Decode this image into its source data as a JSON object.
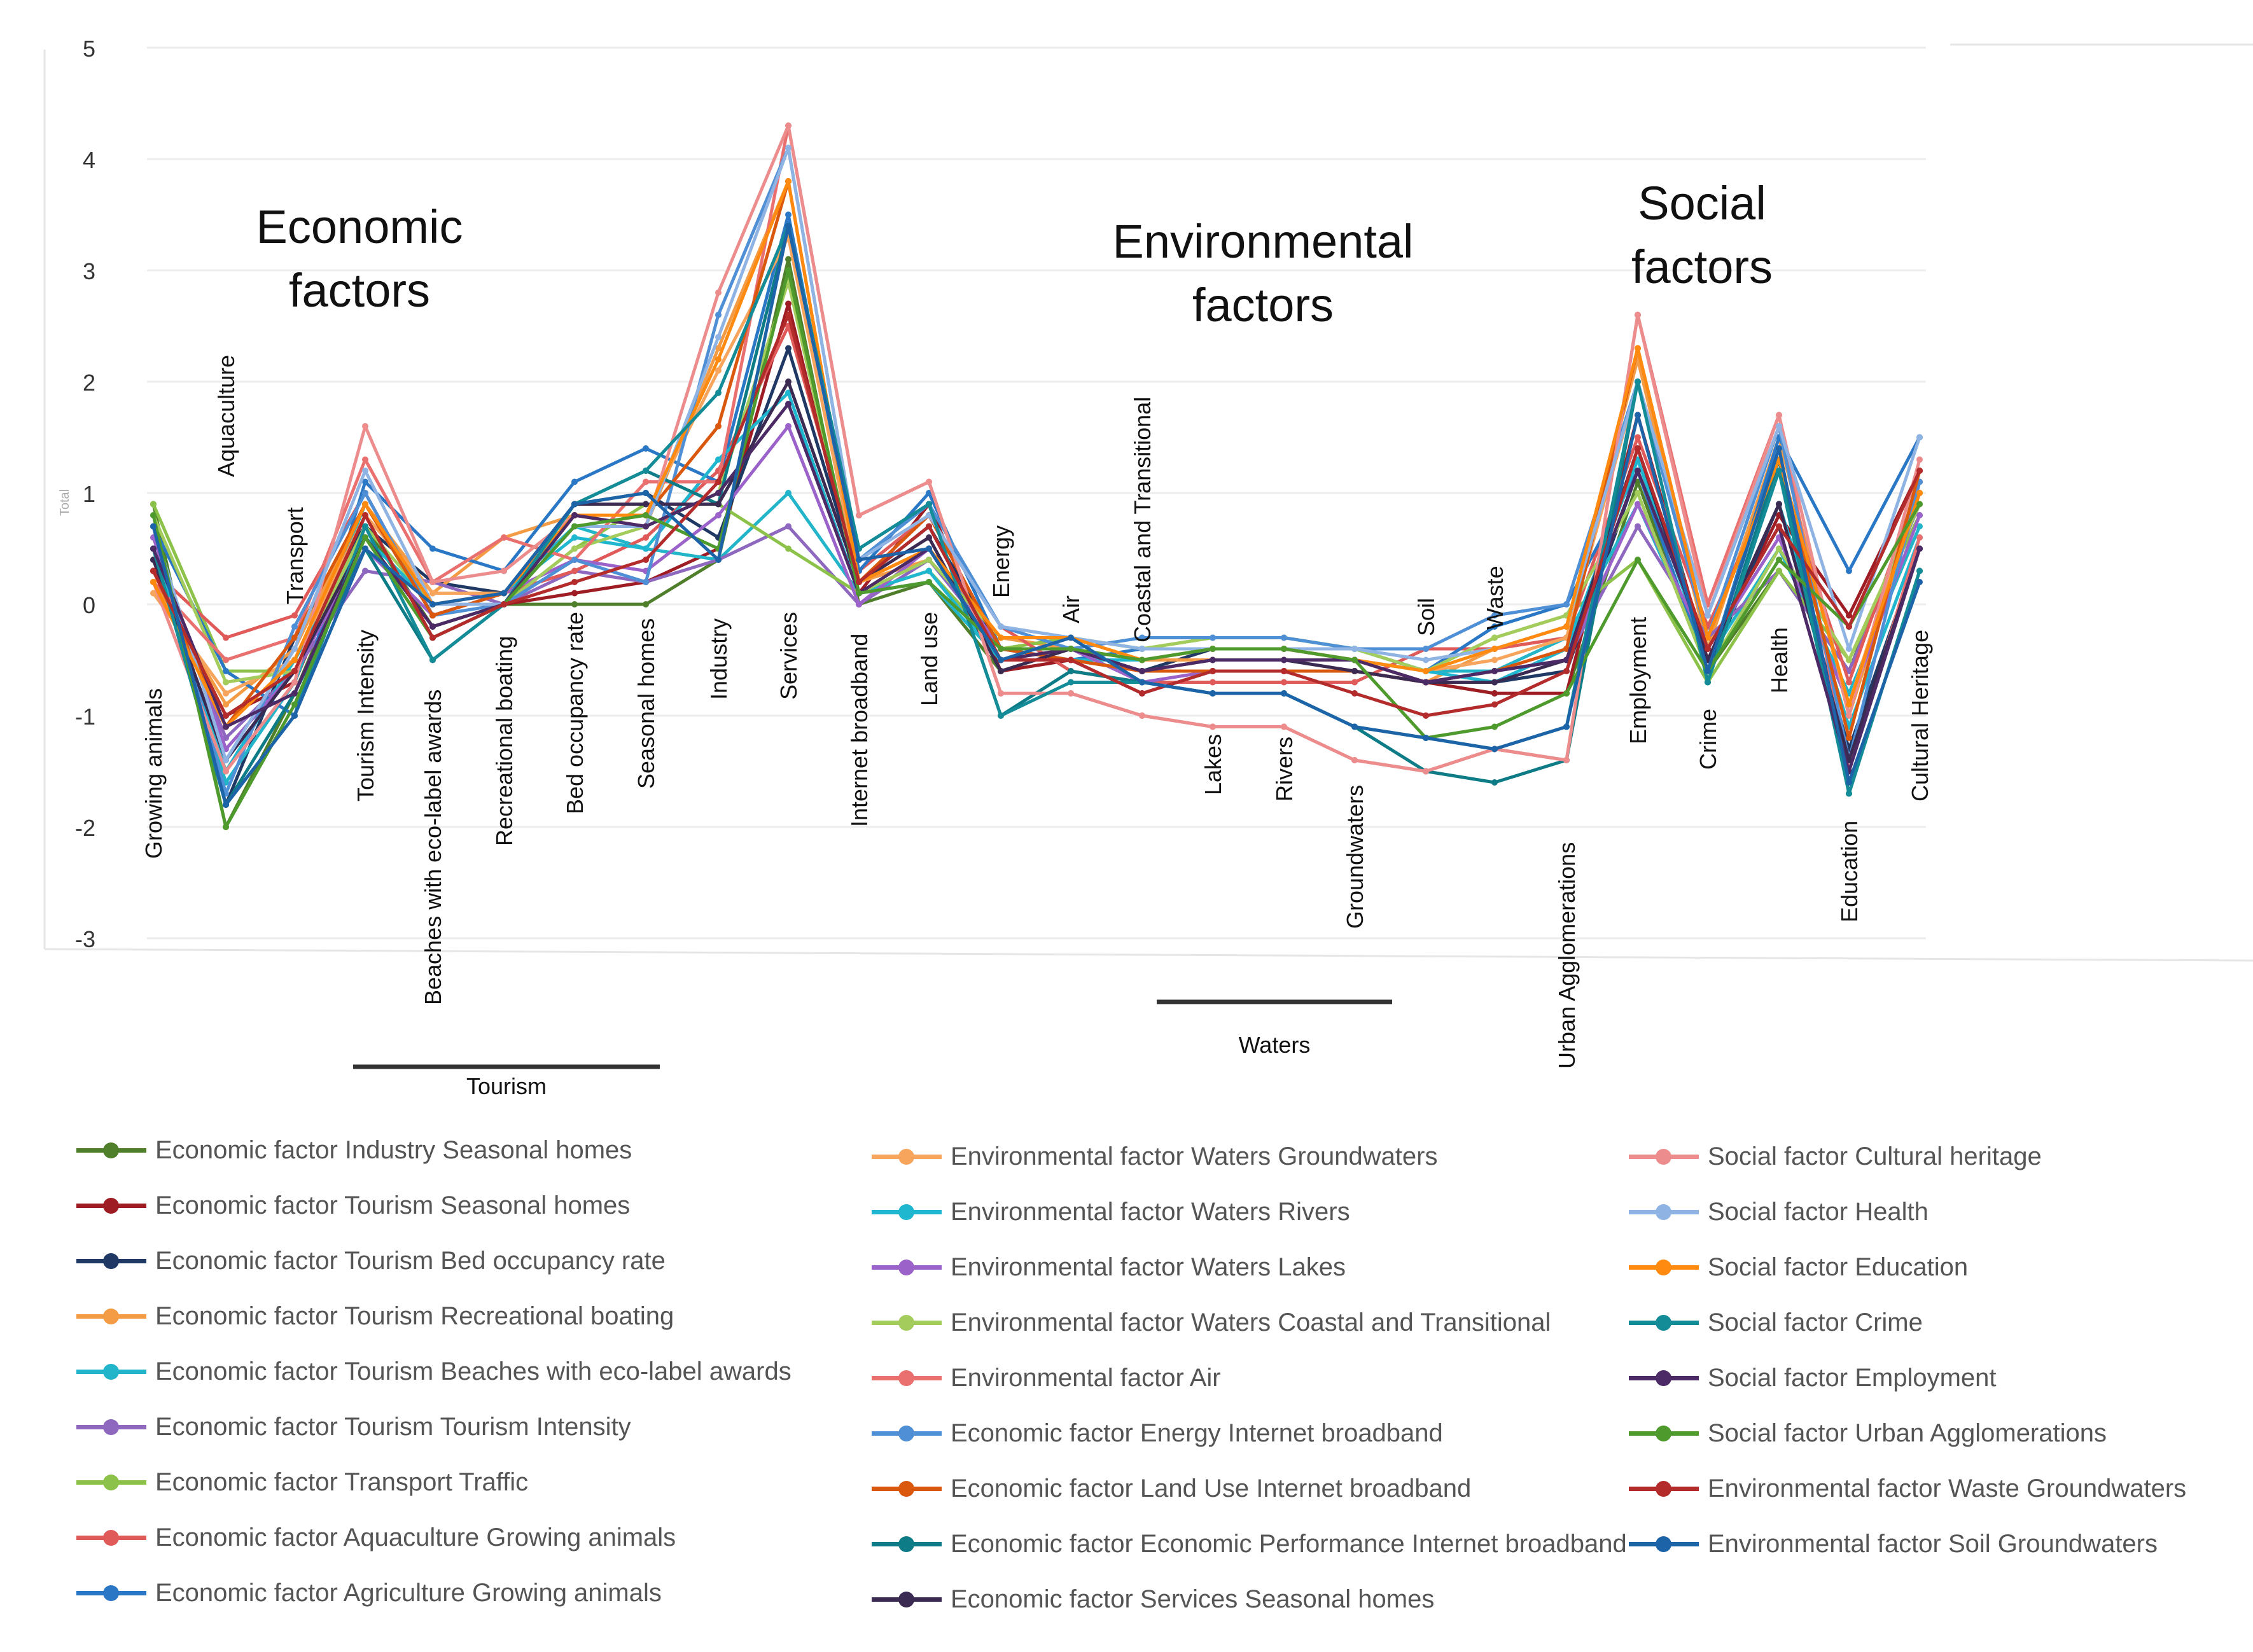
{
  "chart_data": {
    "type": "line",
    "subtype": "parallel-coordinates",
    "ylim": [
      -3,
      5
    ],
    "yticks": [
      "-3",
      "-2",
      "-1",
      "0",
      "1",
      "2",
      "3",
      "4",
      "5"
    ],
    "ylabel": "Total",
    "grid": true,
    "legend_position": "bottom",
    "categories": [
      "Growing animals",
      "Aquaculture",
      "Transport",
      "Tourism Intensity",
      "Beaches with eco-label awards",
      "Recreational boating",
      "Bed occupancy rate",
      "Seasonal homes",
      "Industry",
      "Services",
      "Internet broadband",
      "Land use",
      "Energy",
      "Air",
      "Coastal and Transitional",
      "Lakes",
      "Rivers",
      "Groundwaters",
      "Soil",
      "Waste",
      "Urban Agglomerations",
      "Employment",
      "Crime",
      "Health",
      "Education",
      "Cultural Heritage"
    ],
    "group_headers": [
      {
        "label": "Economic factors",
        "lines": [
          "Economic",
          "factors"
        ]
      },
      {
        "label": "Environmental factors",
        "lines": [
          "Environmental",
          "factors"
        ]
      },
      {
        "label": "Social factors",
        "lines": [
          "Social",
          "factors"
        ]
      }
    ],
    "brackets": [
      {
        "label": "Tourism",
        "from": "Tourism Intensity",
        "to": "Seasonal homes"
      },
      {
        "label": "Waters",
        "from": "Lakes",
        "to": "Groundwaters"
      }
    ],
    "series": [
      {
        "name": "Economic factor Industry Seasonal homes",
        "color": "#4f7f2b",
        "values": [
          0.9,
          -2.0,
          -0.8,
          0.7,
          -0.2,
          0.0,
          0.0,
          0.0,
          0.4,
          3.1,
          0.0,
          0.2,
          -0.6,
          -0.4,
          -0.6,
          -0.6,
          -0.6,
          -0.6,
          -0.7,
          -0.8,
          -0.8,
          1.1,
          -0.6,
          0.3,
          -0.6,
          1.0
        ]
      },
      {
        "name": "Economic factor Tourism Seasonal homes",
        "color": "#9e1d24",
        "values": [
          0.3,
          -1.0,
          -0.7,
          0.8,
          -0.3,
          0.0,
          0.1,
          0.2,
          0.5,
          2.7,
          0.1,
          0.9,
          -0.6,
          -0.5,
          -0.6,
          -0.6,
          -0.6,
          -0.6,
          -0.7,
          -0.8,
          -0.8,
          1.7,
          -0.5,
          0.8,
          -0.1,
          1.2
        ]
      },
      {
        "name": "Economic factor Tourism Bed occupancy rate",
        "color": "#1f3864",
        "values": [
          0.7,
          -1.8,
          -0.3,
          0.7,
          0.2,
          0.1,
          0.9,
          1.0,
          0.6,
          2.3,
          0.2,
          0.7,
          -0.4,
          -0.4,
          -0.6,
          -0.4,
          -0.4,
          -0.5,
          -0.7,
          -0.7,
          -0.6,
          1.2,
          -0.6,
          0.9,
          -1.3,
          0.5
        ]
      },
      {
        "name": "Economic factor Tourism Recreational boating",
        "color": "#f39c45",
        "values": [
          0.2,
          -0.9,
          -0.4,
          0.9,
          0.1,
          0.6,
          0.8,
          0.7,
          2.3,
          3.8,
          0.2,
          0.4,
          -0.3,
          -0.4,
          -0.5,
          -0.5,
          -0.5,
          -0.5,
          -0.7,
          -0.4,
          -0.2,
          2.2,
          -0.4,
          1.5,
          -1.0,
          1.0
        ]
      },
      {
        "name": "Economic factor Tourism Beaches with eco-label awards",
        "color": "#22b5c9",
        "values": [
          0.5,
          -1.6,
          -0.7,
          0.9,
          -0.1,
          0.1,
          0.7,
          0.5,
          0.4,
          1.0,
          0.1,
          0.2,
          -0.5,
          -0.5,
          -0.5,
          -0.4,
          -0.4,
          -0.4,
          -0.6,
          -0.6,
          -0.3,
          0.9,
          -0.5,
          0.5,
          -0.8,
          0.7
        ]
      },
      {
        "name": "Economic factor Tourism Tourism Intensity",
        "color": "#8e67be",
        "values": [
          0.4,
          -1.2,
          -0.6,
          0.3,
          0.2,
          0.0,
          0.3,
          0.2,
          0.4,
          0.7,
          0.0,
          0.4,
          -0.4,
          -0.5,
          -0.8,
          -0.6,
          -0.6,
          -0.6,
          -0.7,
          -0.6,
          -0.5,
          0.7,
          -0.3,
          0.3,
          -0.6,
          0.9
        ]
      },
      {
        "name": "Economic factor Transport Traffic",
        "color": "#8dc24a",
        "values": [
          0.9,
          -0.6,
          -0.6,
          0.6,
          0.0,
          0.0,
          0.5,
          0.9,
          0.9,
          0.5,
          0.1,
          0.3,
          -0.4,
          -0.3,
          -0.4,
          -0.3,
          -0.3,
          -0.4,
          -0.6,
          -0.3,
          -0.1,
          0.4,
          -0.7,
          0.3,
          -0.5,
          0.8
        ]
      },
      {
        "name": "Economic factor Aquaculture Growing animals",
        "color": "#e05a5a",
        "values": [
          0.3,
          -0.3,
          -0.1,
          1.0,
          -0.1,
          0.1,
          0.3,
          0.6,
          1.2,
          2.5,
          0.3,
          0.8,
          -0.2,
          -0.6,
          -0.7,
          -0.7,
          -0.7,
          -0.7,
          -0.4,
          -0.4,
          -0.3,
          1.5,
          -0.2,
          1.2,
          -0.7,
          1.1
        ]
      },
      {
        "name": "Economic factor Agriculture Growing animals",
        "color": "#2a78c5",
        "values": [
          0.7,
          -0.6,
          -1.0,
          1.1,
          0.5,
          0.3,
          1.1,
          1.4,
          1.1,
          3.5,
          0.3,
          1.0,
          -0.4,
          -0.5,
          -0.4,
          -0.4,
          -0.4,
          -0.5,
          -0.6,
          -0.2,
          0.0,
          1.2,
          -0.6,
          1.5,
          0.3,
          1.5
        ]
      },
      {
        "name": "Environmental factor Waters Groundwaters",
        "color": "#f7a45c",
        "values": [
          0.1,
          -0.8,
          -0.5,
          0.8,
          0.1,
          0.1,
          0.8,
          0.8,
          2.1,
          3.3,
          0.2,
          0.5,
          -0.3,
          -0.3,
          -0.5,
          -0.4,
          -0.4,
          -0.5,
          -0.6,
          -0.5,
          -0.3,
          2.0,
          -0.3,
          1.3,
          -0.9,
          1.1
        ]
      },
      {
        "name": "Environmental factor Waters Rivers",
        "color": "#1fb6cf",
        "values": [
          0.5,
          -1.5,
          -0.5,
          0.6,
          0.0,
          0.1,
          0.6,
          0.5,
          1.3,
          1.9,
          0.1,
          0.3,
          -0.5,
          -0.5,
          -0.5,
          -0.4,
          -0.4,
          -0.4,
          -0.6,
          -0.7,
          -0.4,
          1.3,
          -0.5,
          0.9,
          -1.1,
          0.6
        ]
      },
      {
        "name": "Environmental factor Waters Lakes",
        "color": "#9b62c9",
        "values": [
          0.6,
          -1.3,
          -0.6,
          0.5,
          -0.1,
          0.1,
          0.4,
          0.3,
          0.8,
          1.6,
          0.0,
          0.5,
          -0.4,
          -0.4,
          -0.7,
          -0.6,
          -0.6,
          -0.6,
          -0.7,
          -0.6,
          -0.5,
          0.9,
          -0.4,
          0.6,
          -0.9,
          0.8
        ]
      },
      {
        "name": "Environmental factor Waters Coastal and Transitional",
        "color": "#a3cc5c",
        "values": [
          0.8,
          -0.7,
          -0.6,
          0.7,
          0.0,
          0.0,
          0.5,
          0.7,
          1.0,
          2.9,
          0.1,
          0.4,
          -0.3,
          -0.3,
          -0.4,
          -0.3,
          -0.3,
          -0.4,
          -0.6,
          -0.3,
          -0.1,
          1.0,
          -0.6,
          0.5,
          -0.5,
          0.9
        ]
      },
      {
        "name": "Environmental factor Air",
        "color": "#ea7070",
        "values": [
          0.2,
          -0.5,
          -0.3,
          1.3,
          0.2,
          0.6,
          0.4,
          1.1,
          1.1,
          4.3,
          0.8,
          1.1,
          -0.8,
          -0.8,
          -1.0,
          -1.1,
          -1.1,
          -1.4,
          -1.5,
          -1.3,
          -1.4,
          2.6,
          0.0,
          1.7,
          -1.5,
          0.6
        ]
      },
      {
        "name": "Economic factor Energy Internet broadband",
        "color": "#4f8fd6",
        "values": [
          0.7,
          -1.7,
          -0.2,
          1.0,
          -0.1,
          0.0,
          0.4,
          0.2,
          2.6,
          4.1,
          0.4,
          0.9,
          -0.2,
          -0.4,
          -0.3,
          -0.3,
          -0.3,
          -0.4,
          -0.4,
          -0.1,
          0.0,
          2.0,
          -0.3,
          1.6,
          -1.4,
          1.1
        ]
      },
      {
        "name": "Economic factor Land Use Internet broadband",
        "color": "#d9580e",
        "values": [
          0.3,
          -1.1,
          -0.3,
          0.9,
          -0.1,
          0.1,
          0.8,
          0.8,
          1.6,
          3.8,
          0.2,
          0.8,
          -0.4,
          -0.5,
          -0.6,
          -0.6,
          -0.6,
          -0.6,
          -0.7,
          -0.6,
          -0.4,
          2.3,
          -0.3,
          1.3,
          -1.2,
          1.2
        ]
      },
      {
        "name": "Economic factor Economic Performance Internet broadband",
        "color": "#0e7c86",
        "values": [
          0.5,
          -1.8,
          -0.8,
          0.5,
          -0.5,
          0.0,
          0.9,
          1.2,
          0.9,
          3.4,
          0.5,
          0.9,
          -1.0,
          -0.6,
          -0.7,
          -0.8,
          -0.8,
          -1.1,
          -1.5,
          -1.6,
          -1.4,
          2.0,
          -0.7,
          1.3,
          -1.7,
          0.3
        ]
      },
      {
        "name": "Economic factor Services Seasonal homes",
        "color": "#3b2a52",
        "values": [
          0.4,
          -1.4,
          -0.6,
          0.6,
          -0.2,
          0.0,
          0.9,
          0.9,
          0.9,
          2.0,
          0.2,
          0.6,
          -0.6,
          -0.4,
          -0.6,
          -0.5,
          -0.5,
          -0.6,
          -0.7,
          -0.7,
          -0.5,
          1.4,
          -0.5,
          0.9,
          -1.4,
          0.5
        ]
      },
      {
        "name": "Social factor Cultural heritage",
        "color": "#ec8c8c",
        "values": [
          0.2,
          -1.5,
          -0.7,
          1.6,
          0.2,
          0.3,
          0.8,
          0.7,
          2.8,
          4.3,
          0.8,
          1.1,
          -0.8,
          -0.8,
          -1.0,
          -1.1,
          -1.1,
          -1.4,
          -1.5,
          -1.3,
          -1.4,
          2.6,
          -0.1,
          1.7,
          -1.0,
          1.3
        ]
      },
      {
        "name": "Social factor Health",
        "color": "#8fb4e3",
        "values": [
          0.7,
          -1.4,
          -0.4,
          1.2,
          0.0,
          0.0,
          0.7,
          0.7,
          2.4,
          4.1,
          0.4,
          0.8,
          -0.2,
          -0.3,
          -0.4,
          -0.4,
          -0.4,
          -0.4,
          -0.5,
          -0.4,
          -0.2,
          2.0,
          -0.1,
          1.6,
          -0.4,
          1.5
        ]
      },
      {
        "name": "Social factor Education",
        "color": "#ff8a0f",
        "values": [
          0.2,
          -1.1,
          -0.5,
          0.9,
          0.0,
          0.1,
          0.8,
          0.8,
          2.2,
          3.8,
          0.2,
          0.5,
          -0.3,
          -0.3,
          -0.5,
          -0.4,
          -0.4,
          -0.5,
          -0.6,
          -0.4,
          -0.2,
          2.3,
          -0.3,
          1.3,
          -0.9,
          1.0
        ]
      },
      {
        "name": "Social factor Crime",
        "color": "#138c98",
        "values": [
          0.5,
          -1.8,
          -1.0,
          0.7,
          -0.5,
          0.0,
          0.9,
          1.2,
          1.9,
          3.4,
          0.5,
          0.9,
          -1.0,
          -0.7,
          -0.7,
          -0.8,
          -0.8,
          -1.1,
          -1.2,
          -1.3,
          -1.1,
          2.0,
          -0.7,
          1.2,
          -1.7,
          0.3
        ]
      },
      {
        "name": "Social factor Employment",
        "color": "#4b2a66",
        "values": [
          0.5,
          -1.1,
          -0.8,
          0.6,
          -0.2,
          0.0,
          0.8,
          0.7,
          1.0,
          1.8,
          0.1,
          0.5,
          -0.5,
          -0.4,
          -0.6,
          -0.5,
          -0.5,
          -0.5,
          -0.7,
          -0.6,
          -0.5,
          1.2,
          -0.4,
          0.7,
          -1.5,
          0.5
        ]
      },
      {
        "name": "Social factor Urban Agglomerations",
        "color": "#4e9a2d",
        "values": [
          0.8,
          -2.0,
          -0.9,
          0.6,
          -0.3,
          0.0,
          0.7,
          0.8,
          0.5,
          3.0,
          0.1,
          0.2,
          -0.4,
          -0.4,
          -0.5,
          -0.4,
          -0.4,
          -0.5,
          -1.2,
          -1.1,
          -0.8,
          0.4,
          -0.6,
          0.4,
          -0.2,
          0.9
        ]
      },
      {
        "name": "Environmental factor Waste Groundwaters",
        "color": "#b32b2b",
        "values": [
          0.3,
          -1.0,
          -0.6,
          0.8,
          -0.3,
          0.0,
          0.2,
          0.4,
          1.1,
          2.6,
          0.2,
          0.7,
          -0.5,
          -0.5,
          -0.8,
          -0.6,
          -0.6,
          -0.8,
          -1.0,
          -0.9,
          -0.6,
          1.4,
          -0.4,
          0.7,
          -0.2,
          1.2
        ]
      },
      {
        "name": "Environmental factor Soil Groundwaters",
        "color": "#1c63a8",
        "values": [
          0.7,
          -1.8,
          -1.0,
          0.5,
          0.0,
          0.1,
          0.9,
          1.0,
          0.4,
          3.4,
          0.4,
          0.5,
          -0.5,
          -0.3,
          -0.7,
          -0.8,
          -0.8,
          -1.1,
          -1.2,
          -1.3,
          -1.1,
          1.7,
          -0.6,
          1.4,
          -1.6,
          0.2
        ]
      }
    ]
  }
}
